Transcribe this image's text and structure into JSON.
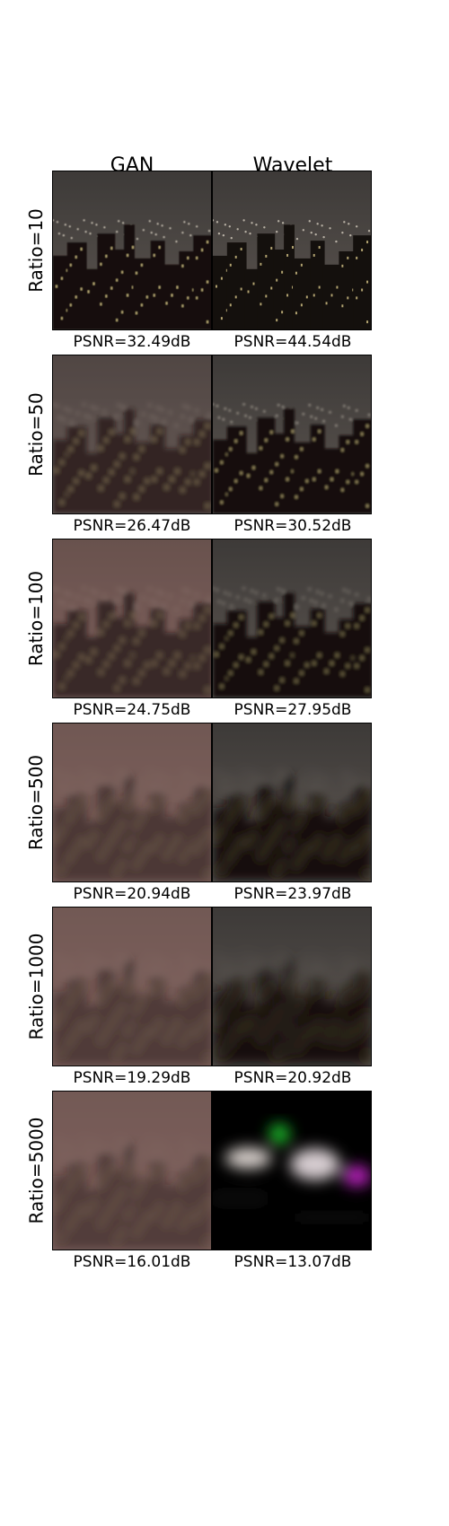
{
  "columns": [
    "GAN",
    "Wavelet"
  ],
  "rows": [
    {
      "label": "Ratio=10",
      "gan_psnr": "PSNR=32.49dB",
      "wavelet_psnr": "PSNR=44.54dB"
    },
    {
      "label": "Ratio=50",
      "gan_psnr": "PSNR=26.47dB",
      "wavelet_psnr": "PSNR=30.52dB"
    },
    {
      "label": "Ratio=100",
      "gan_psnr": "PSNR=24.75dB",
      "wavelet_psnr": "PSNR=27.95dB"
    },
    {
      "label": "Ratio=500",
      "gan_psnr": "PSNR=20.94dB",
      "wavelet_psnr": "PSNR=23.97dB"
    },
    {
      "label": "Ratio=1000",
      "gan_psnr": "PSNR=19.29dB",
      "wavelet_psnr": "PSNR=20.92dB"
    },
    {
      "label": "Ratio=5000",
      "gan_psnr": "PSNR=16.01dB",
      "wavelet_psnr": "PSNR=13.07dB"
    }
  ]
}
